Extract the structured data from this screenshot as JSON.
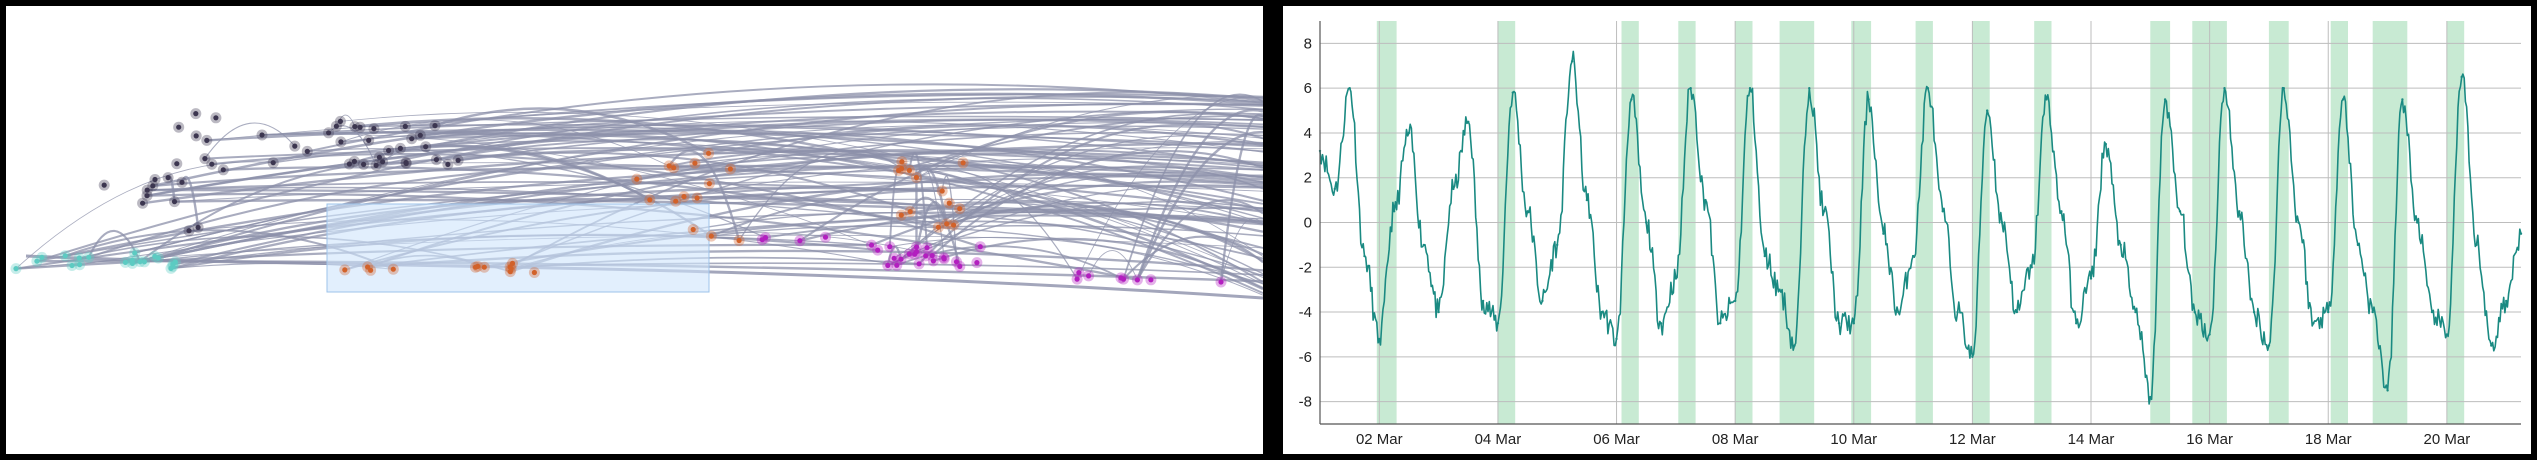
{
  "left_view": {
    "clusters": [
      {
        "name": "cyan-cluster",
        "color": "#5ccbc2"
      },
      {
        "name": "dark-cluster",
        "color": "#3c3650"
      },
      {
        "name": "orange-cluster",
        "color": "#d2622a"
      },
      {
        "name": "magenta-cluster",
        "color": "#b31fbf"
      }
    ],
    "edge_color": "#8c90aa",
    "selection_color": "#cfe5fb"
  },
  "chart_data": {
    "type": "line",
    "title": "",
    "xlabel": "",
    "ylabel": "",
    "line_color": "#1a8a82",
    "band_color": "#c8ead3",
    "x_range": [
      "2024-03-01",
      "2024-03-21T06:00"
    ],
    "ylim": [
      -9,
      9
    ],
    "yticks": [
      8,
      6,
      4,
      2,
      0,
      -2,
      -4,
      -6,
      -8
    ],
    "xticks": [
      "02 Mar",
      "04 Mar",
      "06 Mar",
      "08 Mar",
      "10 Mar",
      "12 Mar",
      "14 Mar",
      "16 Mar",
      "18 Mar",
      "20 Mar"
    ],
    "grid": true,
    "highlight_bands": [
      [
        "2024-03-01T23:00",
        "2024-03-02T07:00"
      ],
      [
        "2024-03-04T00:00",
        "2024-03-04T07:00"
      ],
      [
        "2024-03-06T02:00",
        "2024-03-06T09:00"
      ],
      [
        "2024-03-07T01:00",
        "2024-03-07T08:00"
      ],
      [
        "2024-03-08T00:00",
        "2024-03-08T07:00"
      ],
      [
        "2024-03-08T18:00",
        "2024-03-09T08:00"
      ],
      [
        "2024-03-09T23:00",
        "2024-03-10T07:00"
      ],
      [
        "2024-03-11T01:00",
        "2024-03-11T08:00"
      ],
      [
        "2024-03-12T00:00",
        "2024-03-12T07:00"
      ],
      [
        "2024-03-13T01:00",
        "2024-03-13T08:00"
      ],
      [
        "2024-03-15T00:00",
        "2024-03-15T08:00"
      ],
      [
        "2024-03-15T17:00",
        "2024-03-16T07:00"
      ],
      [
        "2024-03-17T00:00",
        "2024-03-17T08:00"
      ],
      [
        "2024-03-18T01:00",
        "2024-03-18T08:00"
      ],
      [
        "2024-03-18T18:00",
        "2024-03-19T08:00"
      ],
      [
        "2024-03-20T00:00",
        "2024-03-20T07:00"
      ]
    ],
    "series": [
      {
        "x": [
          "2024-03-01T00:00",
          "2024-03-01T06:00",
          "2024-03-01T12:00",
          "2024-03-01T18:00",
          "2024-03-02T00:00",
          "2024-03-02T06:00",
          "2024-03-02T12:00",
          "2024-03-02T18:00",
          "2024-03-03T00:00",
          "2024-03-03T06:00",
          "2024-03-03T12:00",
          "2024-03-03T18:00",
          "2024-03-04T00:00",
          "2024-03-04T06:00",
          "2024-03-04T12:00",
          "2024-03-04T18:00",
          "2024-03-05T00:00",
          "2024-03-05T06:00",
          "2024-03-05T12:00",
          "2024-03-05T18:00",
          "2024-03-06T00:00",
          "2024-03-06T06:00",
          "2024-03-06T12:00",
          "2024-03-06T18:00",
          "2024-03-07T00:00",
          "2024-03-07T06:00",
          "2024-03-07T12:00",
          "2024-03-07T18:00",
          "2024-03-08T00:00",
          "2024-03-08T06:00",
          "2024-03-08T12:00",
          "2024-03-08T18:00",
          "2024-03-09T00:00",
          "2024-03-09T06:00",
          "2024-03-09T12:00",
          "2024-03-09T18:00",
          "2024-03-10T00:00",
          "2024-03-10T06:00",
          "2024-03-10T12:00",
          "2024-03-10T18:00",
          "2024-03-11T00:00",
          "2024-03-11T06:00",
          "2024-03-11T12:00",
          "2024-03-11T18:00",
          "2024-03-12T00:00",
          "2024-03-12T06:00",
          "2024-03-12T12:00",
          "2024-03-12T18:00",
          "2024-03-13T00:00",
          "2024-03-13T06:00",
          "2024-03-13T12:00",
          "2024-03-13T18:00",
          "2024-03-14T00:00",
          "2024-03-14T06:00",
          "2024-03-14T12:00",
          "2024-03-14T18:00",
          "2024-03-15T00:00",
          "2024-03-15T06:00",
          "2024-03-15T12:00",
          "2024-03-15T18:00",
          "2024-03-16T00:00",
          "2024-03-16T06:00",
          "2024-03-16T12:00",
          "2024-03-16T18:00",
          "2024-03-17T00:00",
          "2024-03-17T06:00",
          "2024-03-17T12:00",
          "2024-03-17T18:00",
          "2024-03-18T00:00",
          "2024-03-18T06:00",
          "2024-03-18T12:00",
          "2024-03-18T18:00",
          "2024-03-19T00:00",
          "2024-03-19T06:00",
          "2024-03-19T12:00",
          "2024-03-19T18:00",
          "2024-03-20T00:00",
          "2024-03-20T06:00",
          "2024-03-20T12:00",
          "2024-03-20T18:00",
          "2024-03-21T00:00",
          "2024-03-21T06:00"
        ],
        "y": [
          3.2,
          1.5,
          6.0,
          -1.5,
          -5.2,
          0.5,
          4.0,
          -1.0,
          -4.0,
          1.5,
          4.5,
          -3.5,
          -4.5,
          5.8,
          0.5,
          -3.5,
          -1.0,
          7.2,
          1.0,
          -4.0,
          -5.2,
          5.5,
          0.0,
          -4.5,
          -2.5,
          6.0,
          1.0,
          -4.5,
          -3.5,
          6.0,
          -1.5,
          -3.0,
          -5.5,
          6.0,
          0.5,
          -4.5,
          -4.5,
          5.5,
          -0.5,
          -4.0,
          -1.5,
          6.0,
          0.5,
          -4.0,
          -6.0,
          5.0,
          0.0,
          -4.0,
          -2.0,
          5.5,
          0.5,
          -4.5,
          -2.5,
          3.5,
          -1.0,
          -4.0,
          -7.8,
          5.5,
          0.5,
          -4.0,
          -5.0,
          6.0,
          0.5,
          -4.0,
          -5.5,
          6.0,
          0.0,
          -4.5,
          -4.0,
          5.5,
          -1.0,
          -4.0,
          -7.5,
          5.5,
          0.0,
          -4.0,
          -5.0,
          6.5,
          -1.0,
          -5.5,
          -3.5,
          -0.5
        ]
      }
    ]
  }
}
